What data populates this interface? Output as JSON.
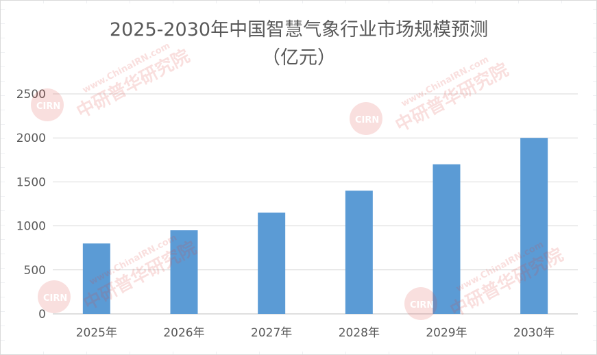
{
  "chart_data": {
    "type": "bar",
    "title": "2025-2030年中国智慧气象行业市场规模预测",
    "subtitle": "（亿元）",
    "categories": [
      "2025年",
      "2026年",
      "2027年",
      "2028年",
      "2029年",
      "2030年"
    ],
    "values": [
      800,
      950,
      1150,
      1400,
      1700,
      2000
    ],
    "ylim": [
      0,
      2500
    ],
    "yticks": [
      0,
      500,
      1000,
      1500,
      2000,
      2500
    ],
    "grid": true,
    "legend": "none",
    "bar_color": "#5b9bd5",
    "grid_color": "#d9d9d9",
    "axis_color": "#bfbfbf"
  },
  "watermark": {
    "logo_text": "CIRN",
    "url_text": "www.ChinaIRN.com",
    "name_text": "中研普华研究院",
    "accent_color": "#e0403a"
  }
}
